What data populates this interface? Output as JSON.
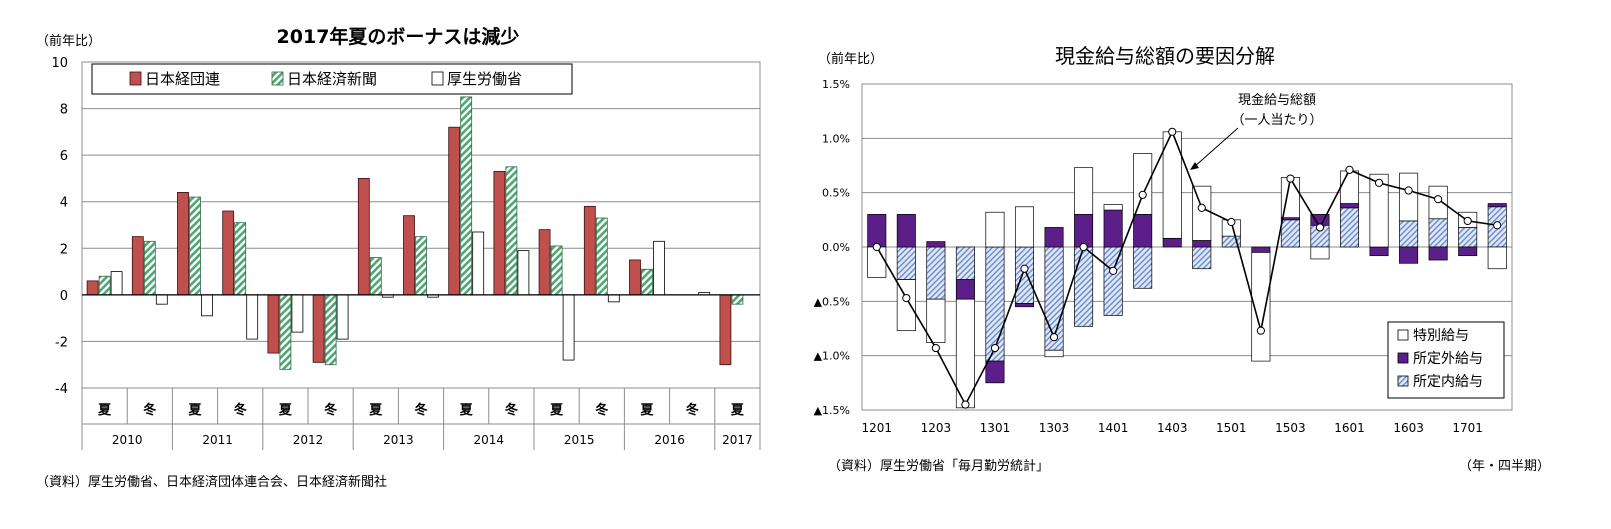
{
  "chart_data": [
    {
      "type": "bar",
      "title": "2017年夏のボーナスは減少",
      "ylabel": "（前年比）",
      "ylim": [
        -4,
        10
      ],
      "yticks": [
        -4,
        -2,
        0,
        2,
        4,
        6,
        8,
        10
      ],
      "grid": true,
      "legend_position": "top",
      "categories": [
        "夏",
        "冬",
        "夏",
        "冬",
        "夏",
        "冬",
        "夏",
        "冬",
        "夏",
        "冬",
        "夏",
        "冬",
        "夏",
        "冬",
        "夏"
      ],
      "years": [
        {
          "label": "2010",
          "span": 2
        },
        {
          "label": "2011",
          "span": 2
        },
        {
          "label": "2012",
          "span": 2
        },
        {
          "label": "2013",
          "span": 2
        },
        {
          "label": "2014",
          "span": 2
        },
        {
          "label": "2015",
          "span": 2
        },
        {
          "label": "2016",
          "span": 2
        },
        {
          "label": "2017",
          "span": 1
        }
      ],
      "series": [
        {
          "name": "日本経団連",
          "color": "#c0504d",
          "values": [
            0.6,
            2.5,
            4.4,
            3.6,
            -2.5,
            -2.9,
            5.0,
            3.4,
            7.2,
            5.3,
            2.8,
            3.8,
            1.5,
            null,
            -3.0
          ]
        },
        {
          "name": "日本経済新聞",
          "color": "#7fcf9f",
          "values": [
            0.8,
            2.3,
            4.2,
            3.1,
            -3.2,
            -3.0,
            1.6,
            2.5,
            8.5,
            5.5,
            2.1,
            3.3,
            1.1,
            null,
            -0.4
          ]
        },
        {
          "name": "厚生労働省",
          "color": "#ffffff",
          "values": [
            1.0,
            -0.4,
            -0.9,
            -1.9,
            -1.6,
            -1.9,
            -0.1,
            -0.1,
            2.7,
            1.9,
            -2.8,
            -0.3,
            2.3,
            0.1,
            null
          ]
        }
      ],
      "source": "（資料）厚生労働省、日本経済団体連合会、日本経済新聞社",
      "extra_series_notes": [
        "2016冬 厚生労働省 -0.1"
      ]
    },
    {
      "type": "bar",
      "stacked": true,
      "title": "現金給与総額の要因分解",
      "ylabel": "（前年比）",
      "xlabel": "（年・四半期）",
      "ylim": [
        -1.5,
        1.5
      ],
      "ytick_labels": [
        "1.5%",
        "1.0%",
        "0.5%",
        "0.0%",
        "▲0.5%",
        "▲1.0%",
        "▲1.5%"
      ],
      "yticks": [
        1.5,
        1.0,
        0.5,
        0.0,
        -0.5,
        -1.0,
        -1.5
      ],
      "grid": true,
      "legend_position": "bottom-right",
      "x_tick_labels": [
        "1201",
        "1203",
        "1301",
        "1303",
        "1401",
        "1403",
        "1501",
        "1503",
        "1601",
        "1603",
        "1701"
      ],
      "x": [
        "1201",
        "1202",
        "1203",
        "1204",
        "1301",
        "1302",
        "1303",
        "1304",
        "1401",
        "1402",
        "1403",
        "1404",
        "1501",
        "1502",
        "1503",
        "1504",
        "1601",
        "1602",
        "1603",
        "1604",
        "1701",
        "1702"
      ],
      "series": [
        {
          "name": "所定内給与",
          "color": "#9db3e3",
          "values": [
            0.0,
            -0.3,
            -0.48,
            -0.3,
            -1.05,
            -0.52,
            -0.95,
            -0.73,
            -0.63,
            -0.38,
            0.0,
            -0.2,
            0.1,
            0.0,
            0.25,
            0.2,
            0.36,
            0.0,
            0.24,
            0.26,
            0.18,
            0.37
          ]
        },
        {
          "name": "所定外給与",
          "color": "#5c1f8a",
          "values": [
            0.3,
            0.3,
            0.05,
            -0.18,
            -0.2,
            -0.03,
            0.18,
            0.3,
            0.34,
            0.3,
            0.08,
            0.06,
            0.0,
            -0.05,
            0.02,
            0.1,
            0.04,
            -0.08,
            -0.15,
            -0.12,
            -0.08,
            0.03
          ]
        },
        {
          "name": "特別給与",
          "color": "#ffffff",
          "values": [
            -0.28,
            -0.47,
            -0.4,
            -1.0,
            0.32,
            0.37,
            -0.06,
            0.43,
            0.05,
            0.56,
            0.98,
            0.5,
            0.15,
            -1.0,
            0.37,
            -0.11,
            0.3,
            0.67,
            0.44,
            0.3,
            0.14,
            -0.2
          ]
        },
        {
          "name": "現金給与総額（一人当たり）",
          "type": "line",
          "color": "#000000",
          "values": [
            0.0,
            -0.47,
            -0.93,
            -1.45,
            -0.93,
            -0.2,
            -0.83,
            0.0,
            -0.22,
            0.48,
            1.06,
            0.36,
            0.23,
            -0.77,
            0.63,
            0.18,
            0.71,
            0.59,
            0.52,
            0.44,
            0.24,
            0.2
          ]
        }
      ],
      "annotation": [
        "現金給与総額",
        "（一人当たり）"
      ],
      "source": "（資料）厚生労働省「毎月勤労統計」"
    }
  ]
}
